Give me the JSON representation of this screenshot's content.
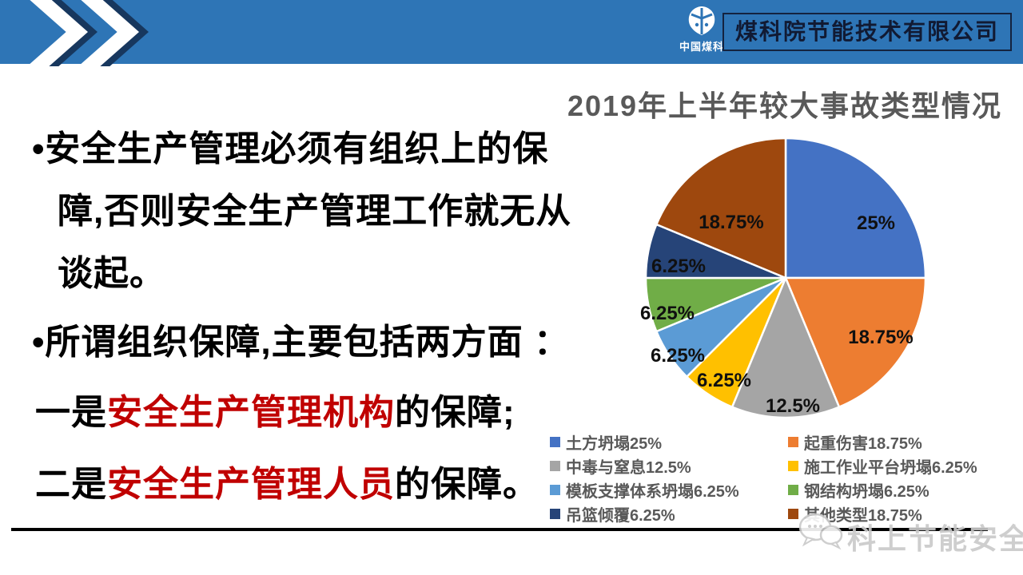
{
  "slide": {
    "header": {
      "logo_caption": "中国煤科",
      "company_name": "煤科院节能技术有限公司"
    },
    "body": {
      "bullet1_line1": "•安全生产管理必须有组织上的保",
      "bullet1_line2": "障,否则安全生产管理工作就无从",
      "bullet1_line3": "谈起。",
      "bullet2": "•所谓组织保障,主要包括两方面 ：",
      "point1_prefix": "一是",
      "point1_highlight": "安全生产管理机构",
      "point1_suffix": "的保障;",
      "point2_prefix": "二是",
      "point2_highlight": "安全生产管理人员",
      "point2_suffix": "的保障。"
    },
    "watermark": "科上节能安全"
  },
  "colors": {
    "header_blue": "#2E75B6",
    "chevron_navy": "#17375E",
    "title_gray": "#595959",
    "highlight_red": "#C00000",
    "legend_gray": "#595959"
  },
  "chart_data": {
    "type": "pie",
    "title": "2019年上半年较大事故类型情况",
    "start_angle_deg": -90,
    "direction": "clockwise",
    "legend_position": "bottom-two-columns",
    "slices": [
      {
        "name": "土方坍塌",
        "value": 25,
        "label": "25%",
        "color": "#4472C4"
      },
      {
        "name": "起重伤害",
        "value": 18.75,
        "label": "18.75%",
        "color": "#ED7D31"
      },
      {
        "name": "中毒与窒息",
        "value": 12.5,
        "label": "12.5%",
        "color": "#A5A5A5"
      },
      {
        "name": "施工作业平台坍塌",
        "value": 6.25,
        "label": "6.25%",
        "color": "#FFC000"
      },
      {
        "name": "模板支撑体系坍塌",
        "value": 6.25,
        "label": "6.25%",
        "color": "#5B9BD5"
      },
      {
        "name": "钢结构坍塌",
        "value": 6.25,
        "label": "6.25%",
        "color": "#70AD47"
      },
      {
        "name": "吊篮倾覆",
        "value": 6.25,
        "label": "6.25%",
        "color": "#264478"
      },
      {
        "name": "其他类型",
        "value": 18.75,
        "label": "18.75%",
        "color": "#9E480E"
      }
    ],
    "legend_columns": [
      [
        {
          "label": "土方坍塌25%",
          "color": "#4472C4"
        },
        {
          "label": "中毒与窒息12.5%",
          "color": "#A5A5A5"
        },
        {
          "label": "模板支撑体系坍塌6.25%",
          "color": "#5B9BD5"
        },
        {
          "label": "吊篮倾覆6.25%",
          "color": "#264478"
        }
      ],
      [
        {
          "label": "起重伤害18.75%",
          "color": "#ED7D31"
        },
        {
          "label": "施工作业平台坍塌6.25%",
          "color": "#FFC000"
        },
        {
          "label": "钢结构坍塌6.25%",
          "color": "#70AD47"
        },
        {
          "label": "其他类型18.75%",
          "color": "#9E480E"
        }
      ]
    ]
  }
}
